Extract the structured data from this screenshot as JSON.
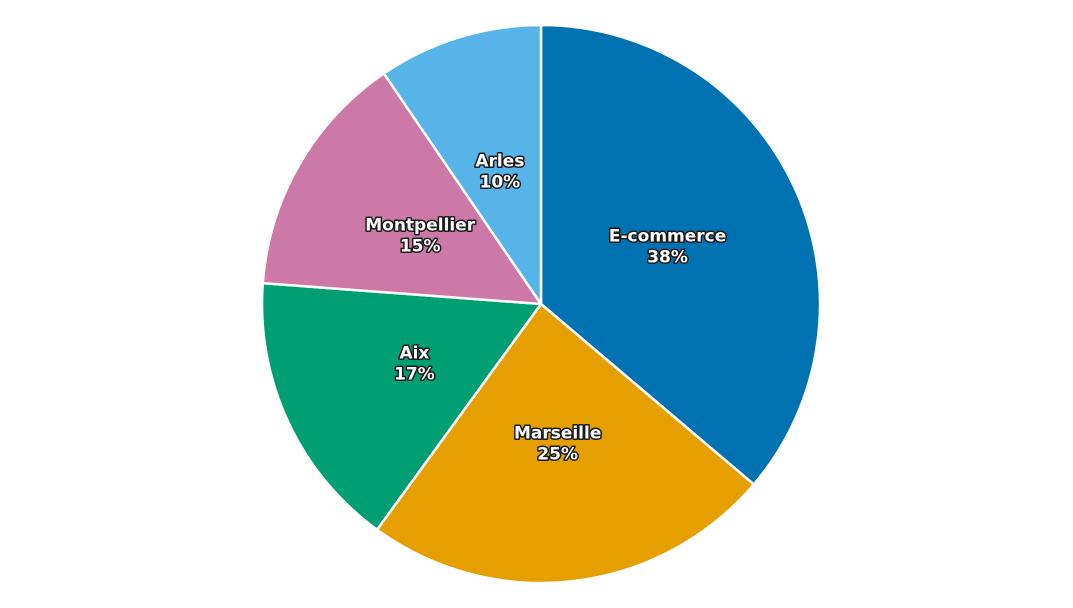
{
  "chart_data": {
    "type": "pie",
    "start_angle_deg": 90,
    "direction": "clockwise",
    "legend": "none",
    "slices": [
      {
        "label": "E-commerce",
        "value": 38,
        "display": "38%",
        "color": "#0072B2"
      },
      {
        "label": "Marseille",
        "value": 25,
        "display": "25%",
        "color": "#E69F00"
      },
      {
        "label": "Aix",
        "value": 17,
        "display": "17%",
        "color": "#009E73"
      },
      {
        "label": "Montpellier",
        "value": 15,
        "display": "15%",
        "color": "#CC79A7"
      },
      {
        "label": "Arles",
        "value": 10,
        "display": "10%",
        "color": "#56B4E9"
      }
    ]
  }
}
